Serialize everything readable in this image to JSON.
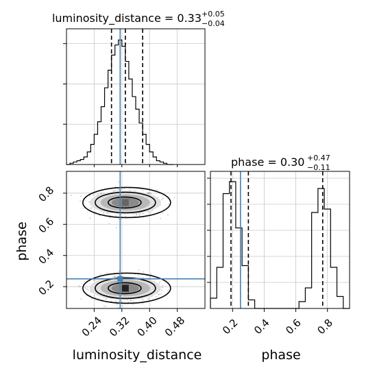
{
  "chart_data": {
    "type": "corner",
    "parameters": [
      "luminosity_distance",
      "phase"
    ],
    "truths": {
      "luminosity_distance": 0.315,
      "phase": 0.25
    },
    "colors": {
      "hist": "#000000",
      "truth": "#4682b4",
      "grid": "#c8c8c8",
      "scatter": "#555555"
    },
    "panels": {
      "luminosity_distance_hist": {
        "title": {
          "label": "luminosity_distance = 0.33",
          "upper": "+0.05",
          "lower": "−0.04"
        },
        "xlim": [
          0.16,
          0.56
        ],
        "quantiles": [
          0.29,
          0.33,
          0.38
        ],
        "bin_edges": [
          0.16,
          0.17,
          0.18,
          0.19,
          0.2,
          0.21,
          0.22,
          0.23,
          0.24,
          0.25,
          0.26,
          0.27,
          0.28,
          0.29,
          0.3,
          0.31,
          0.32,
          0.33,
          0.34,
          0.35,
          0.36,
          0.37,
          0.38,
          0.39,
          0.4,
          0.41,
          0.42,
          0.43,
          0.44,
          0.45,
          0.46,
          0.47
        ],
        "counts": [
          0,
          1,
          2,
          3,
          4,
          6,
          10,
          16,
          24,
          34,
          46,
          61,
          75,
          87,
          95,
          99,
          94,
          82,
          68,
          54,
          44,
          33,
          24,
          16,
          10,
          6,
          3,
          2,
          1,
          0,
          0
        ],
        "grid": "on"
      },
      "phase_hist": {
        "title": {
          "label": "phase = 0.30",
          "upper": "+0.47",
          "lower": "−0.11"
        },
        "xlim": [
          0.06,
          0.94
        ],
        "ylim": [
          0,
          80
        ],
        "quantiles": [
          0.19,
          0.3,
          0.77
        ],
        "bin_edges": [
          0.06,
          0.1,
          0.14,
          0.18,
          0.22,
          0.26,
          0.3,
          0.34,
          0.38,
          0.42,
          0.46,
          0.5,
          0.54,
          0.58,
          0.62,
          0.66,
          0.7,
          0.74,
          0.78,
          0.82,
          0.86,
          0.9,
          0.94
        ],
        "counts": [
          6,
          24,
          67,
          74,
          47,
          25,
          5,
          0,
          0,
          0,
          0,
          0,
          0,
          0,
          4,
          12,
          56,
          70,
          58,
          24,
          7,
          0
        ],
        "grid": "on"
      },
      "joint": {
        "xlabel": "luminosity_distance",
        "ylabel": "phase",
        "xlim": [
          0.16,
          0.56
        ],
        "ylim": [
          0.06,
          0.94
        ],
        "grid": "on",
        "modes": [
          {
            "x": 0.33,
            "y": 0.74
          },
          {
            "x": 0.33,
            "y": 0.19
          }
        ]
      }
    },
    "x_ticks_lum": [
      "0.24",
      "0.32",
      "0.40",
      "0.48"
    ],
    "x_ticks_lum_values": [
      0.24,
      0.32,
      0.4,
      0.48
    ],
    "y_ticks_phase": [
      "0.2",
      "0.4",
      "0.6",
      "0.8"
    ],
    "y_ticks_phase_values": [
      0.2,
      0.4,
      0.6,
      0.8
    ],
    "x_ticks_phase": [
      "0.2",
      "0.4",
      "0.6",
      "0.8"
    ],
    "x_ticks_phase_values": [
      0.2,
      0.4,
      0.6,
      0.8
    ]
  }
}
